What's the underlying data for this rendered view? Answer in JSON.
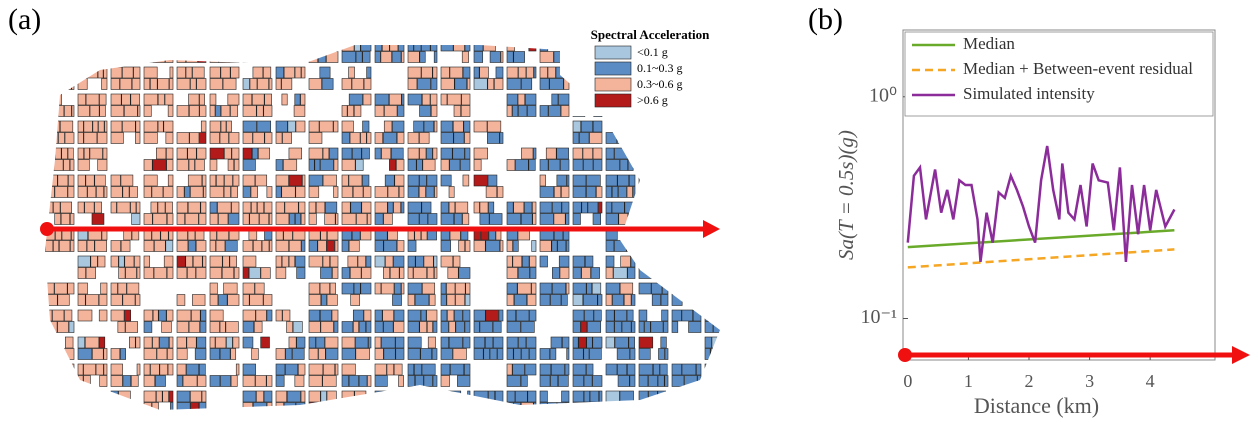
{
  "panels": {
    "a": "(a)",
    "b": "(b)"
  },
  "map_legend": {
    "title": "Spectral Acceleration",
    "items": [
      {
        "label": "<0.1 g",
        "color": "#a9c8e0"
      },
      {
        "label": "0.1~0.3 g",
        "color": "#5b8cc4"
      },
      {
        "label": "0.3~0.6 g",
        "color": "#f4b39b"
      },
      {
        "label": ">0.6 g",
        "color": "#b31b1b"
      }
    ]
  },
  "chart_data": {
    "type": "line",
    "log_y": true,
    "xlabel": "Distance (km)",
    "ylabel": "Sa(T = 0.5s)(g)",
    "xlim": [
      -0.08,
      5.07
    ],
    "ylim": [
      0.065,
      2
    ],
    "xticks": [
      0,
      1,
      2,
      3,
      4
    ],
    "yticks": [
      {
        "value": 0.1,
        "label": "10⁻¹"
      },
      {
        "value": 1,
        "label": "10⁰"
      }
    ],
    "series": [
      {
        "name": "Median",
        "color": "#6aaa2a",
        "dash": false,
        "x": [
          0,
          4.4
        ],
        "values": [
          0.21,
          0.25
        ]
      },
      {
        "name": "Median + Between-event residual",
        "color": "#f5a623",
        "dash": true,
        "x": [
          0,
          4.4
        ],
        "values": [
          0.17,
          0.205
        ]
      },
      {
        "name": "Simulated intensity",
        "color": "#8b2c9a",
        "dash": false,
        "x": [
          0,
          0.1,
          0.2,
          0.3,
          0.45,
          0.55,
          0.65,
          0.75,
          0.85,
          0.95,
          1.05,
          1.15,
          1.2,
          1.3,
          1.4,
          1.5,
          1.6,
          1.7,
          1.8,
          1.9,
          2.0,
          2.1,
          2.2,
          2.3,
          2.4,
          2.5,
          2.55,
          2.65,
          2.75,
          2.85,
          2.95,
          3.05,
          3.15,
          3.3,
          3.4,
          3.5,
          3.6,
          3.7,
          3.8,
          3.9,
          4.0,
          4.1,
          4.25,
          4.4
        ],
        "values": [
          0.22,
          0.44,
          0.48,
          0.28,
          0.47,
          0.3,
          0.38,
          0.28,
          0.42,
          0.4,
          0.4,
          0.28,
          0.18,
          0.3,
          0.22,
          0.37,
          0.35,
          0.44,
          0.38,
          0.32,
          0.26,
          0.22,
          0.42,
          0.6,
          0.38,
          0.28,
          0.5,
          0.3,
          0.28,
          0.4,
          0.26,
          0.5,
          0.42,
          0.41,
          0.25,
          0.48,
          0.18,
          0.4,
          0.24,
          0.4,
          0.25,
          0.38,
          0.26,
          0.31
        ]
      }
    ]
  }
}
